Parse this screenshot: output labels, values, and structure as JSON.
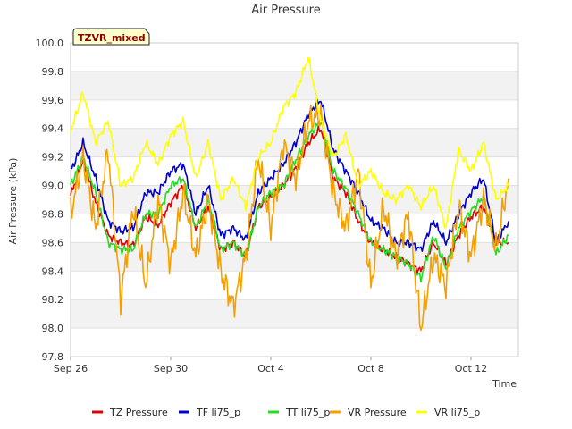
{
  "chart_data": {
    "type": "line",
    "title": "Air Pressure",
    "xlabel": "Time",
    "ylabel": "Air Pressure (kPa)",
    "tag": "TZVR_mixed",
    "xlim": [
      "2023-09-26",
      "2023-10-14"
    ],
    "ylim": [
      97.8,
      100.0
    ],
    "x_ticks": [
      {
        "label": "Sep 26",
        "day": 0
      },
      {
        "label": "Sep 30",
        "day": 4
      },
      {
        "label": "Oct 4",
        "day": 8
      },
      {
        "label": "Oct 8",
        "day": 12
      },
      {
        "label": "Oct 12",
        "day": 16
      }
    ],
    "y_ticks": [
      "97.8",
      "98.0",
      "98.2",
      "98.4",
      "98.6",
      "98.8",
      "99.0",
      "99.2",
      "99.4",
      "99.6",
      "99.8",
      "100.0"
    ],
    "grid": true,
    "legend_position": "bottom",
    "series": [
      {
        "name": "TZ Pressure",
        "color": "#e00000",
        "x": [
          "09-26",
          "09-26 12h",
          "09-27",
          "09-27 12h",
          "09-28",
          "09-28 12h",
          "09-29",
          "09-29 12h",
          "09-30",
          "09-30 12h",
          "10-01",
          "10-01 12h",
          "10-02",
          "10-02 12h",
          "10-03",
          "10-03 12h",
          "10-04",
          "10-04 12h",
          "10-05",
          "10-05 12h",
          "10-06",
          "10-06 12h",
          "10-07",
          "10-07 12h",
          "10-08",
          "10-08 12h",
          "10-09",
          "10-09 12h",
          "10-10",
          "10-10 12h",
          "10-11",
          "10-11 12h",
          "10-12",
          "10-12 12h",
          "10-13",
          "10-13 12h"
        ],
        "values": [
          98.93,
          99.18,
          98.88,
          98.65,
          98.6,
          98.58,
          98.78,
          98.72,
          98.88,
          99.0,
          98.7,
          98.85,
          98.55,
          98.6,
          98.5,
          98.85,
          98.92,
          99.0,
          99.12,
          99.3,
          99.4,
          99.05,
          98.95,
          98.75,
          98.6,
          98.55,
          98.5,
          98.45,
          98.4,
          98.6,
          98.45,
          98.65,
          98.78,
          98.85,
          98.6,
          98.6
        ]
      },
      {
        "name": "TF li75_p",
        "color": "#0000cc",
        "x": [
          "09-26",
          "09-26 12h",
          "09-27",
          "09-27 12h",
          "09-28",
          "09-28 12h",
          "09-29",
          "09-29 12h",
          "09-30",
          "09-30 12h",
          "10-01",
          "10-01 12h",
          "10-02",
          "10-02 12h",
          "10-03",
          "10-03 12h",
          "10-04",
          "10-04 12h",
          "10-05",
          "10-05 12h",
          "10-06",
          "10-06 12h",
          "10-07",
          "10-07 12h",
          "10-08",
          "10-08 12h",
          "10-09",
          "10-09 12h",
          "10-10",
          "10-10 12h",
          "10-11",
          "10-11 12h",
          "10-12",
          "10-12 12h",
          "10-13",
          "10-13 12h"
        ],
        "values": [
          99.1,
          99.3,
          99.05,
          98.75,
          98.68,
          98.7,
          98.95,
          98.95,
          99.1,
          99.15,
          98.8,
          99.0,
          98.65,
          98.7,
          98.62,
          98.95,
          99.05,
          99.15,
          99.3,
          99.5,
          99.6,
          99.25,
          99.1,
          98.95,
          98.75,
          98.7,
          98.6,
          98.6,
          98.55,
          98.75,
          98.6,
          98.8,
          98.95,
          99.05,
          98.6,
          98.75
        ]
      },
      {
        "name": "TT li75_p",
        "color": "#22dd22",
        "x": [
          "09-26",
          "09-26 12h",
          "09-27",
          "09-27 12h",
          "09-28",
          "09-28 12h",
          "09-29",
          "09-29 12h",
          "09-30",
          "09-30 12h",
          "10-01",
          "10-01 12h",
          "10-02",
          "10-02 12h",
          "10-03",
          "10-03 12h",
          "10-04",
          "10-04 12h",
          "10-05",
          "10-05 12h",
          "10-06",
          "10-06 12h",
          "10-07",
          "10-07 12h",
          "10-08",
          "10-08 12h",
          "10-09",
          "10-09 12h",
          "10-10",
          "10-10 12h",
          "10-11",
          "10-11 12h",
          "10-12",
          "10-12 12h",
          "10-13",
          "10-13 12h"
        ],
        "values": [
          99.0,
          99.2,
          98.95,
          98.6,
          98.55,
          98.55,
          98.8,
          98.8,
          99.0,
          99.05,
          98.7,
          98.9,
          98.55,
          98.6,
          98.5,
          98.85,
          98.95,
          99.0,
          99.18,
          99.35,
          99.45,
          99.1,
          98.98,
          98.8,
          98.6,
          98.55,
          98.5,
          98.45,
          98.35,
          98.65,
          98.42,
          98.7,
          98.82,
          98.92,
          98.52,
          98.65
        ]
      },
      {
        "name": "VR Pressure",
        "color": "#f5a000",
        "x": [
          "09-26",
          "09-26 12h",
          "09-27",
          "09-27 12h",
          "09-28",
          "09-28 12h",
          "09-29",
          "09-29 12h",
          "09-30",
          "09-30 12h",
          "10-01",
          "10-01 12h",
          "10-02",
          "10-02 12h",
          "10-03",
          "10-03 12h",
          "10-04",
          "10-04 12h",
          "10-05",
          "10-05 12h",
          "10-06",
          "10-06 12h",
          "10-07",
          "10-07 12h",
          "10-08",
          "10-08 12h",
          "10-09",
          "10-09 12h",
          "10-10",
          "10-10 12h",
          "10-11",
          "10-11 12h",
          "10-12",
          "10-12 12h",
          "10-13",
          "10-13 12h"
        ],
        "values": [
          98.8,
          99.2,
          98.7,
          99.25,
          98.2,
          98.85,
          98.3,
          98.9,
          98.45,
          98.95,
          98.5,
          98.9,
          98.4,
          98.15,
          98.5,
          99.2,
          98.7,
          99.3,
          99.05,
          99.45,
          99.5,
          98.95,
          98.7,
          99.1,
          98.3,
          98.85,
          98.5,
          98.8,
          98.0,
          98.5,
          98.3,
          98.85,
          98.5,
          98.9,
          98.55,
          99.05
        ]
      },
      {
        "name": "VR li75_p",
        "color": "#ffff00",
        "x": [
          "09-26",
          "09-26 12h",
          "09-27",
          "09-27 12h",
          "09-28",
          "09-28 12h",
          "09-29",
          "09-29 12h",
          "09-30",
          "09-30 12h",
          "10-01",
          "10-01 12h",
          "10-02",
          "10-02 12h",
          "10-03",
          "10-03 12h",
          "10-04",
          "10-04 12h",
          "10-05",
          "10-05 12h",
          "10-06",
          "10-06 12h",
          "10-07",
          "10-07 12h",
          "10-08",
          "10-08 12h",
          "10-09",
          "10-09 12h",
          "10-10",
          "10-10 12h",
          "10-11",
          "10-11 12h",
          "10-12",
          "10-12 12h",
          "10-13",
          "10-13 12h"
        ],
        "values": [
          99.38,
          99.65,
          99.3,
          99.45,
          99.0,
          99.05,
          99.3,
          99.15,
          99.35,
          99.45,
          99.05,
          99.3,
          98.9,
          99.05,
          98.85,
          99.2,
          99.3,
          99.55,
          99.65,
          99.9,
          99.45,
          99.2,
          99.35,
          99.0,
          99.1,
          98.95,
          98.9,
          99.0,
          98.85,
          99.0,
          98.7,
          99.25,
          99.1,
          99.3,
          98.9,
          99.0
        ]
      }
    ]
  }
}
